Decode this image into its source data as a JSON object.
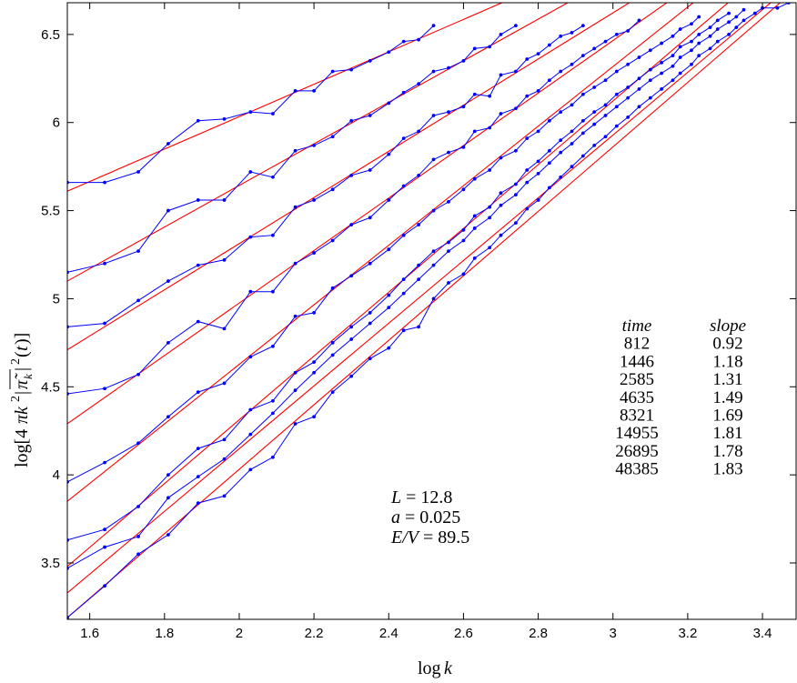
{
  "chart_data": {
    "type": "line",
    "xlabel": "log k",
    "ylabel": "log[4πk²|π̄_k|²(t)]",
    "xlim": [
      1.54,
      3.49
    ],
    "ylim": [
      3.18,
      6.68
    ],
    "xticks": [
      1.6,
      1.8,
      2.0,
      2.2,
      2.4,
      2.6,
      2.8,
      3.0,
      3.2,
      3.4
    ],
    "xtick_labels": [
      "1.6",
      "1.8",
      "2",
      "2.2",
      "2.4",
      "2.6",
      "2.8",
      "3",
      "3.2",
      "3.4"
    ],
    "yticks": [
      3.5,
      4.0,
      4.5,
      5.0,
      5.5,
      6.0,
      6.5
    ],
    "ytick_labels": [
      "3.5",
      "4",
      "4.5",
      "5",
      "5.5",
      "6",
      "6.5"
    ],
    "grid": false,
    "colors": {
      "data": "#0000ff",
      "fit": "#ff0000"
    },
    "params": [
      "L = 12.8",
      "a = 0.025",
      "E/V = 89.5"
    ],
    "table": {
      "headers": [
        "time",
        "slope"
      ],
      "rows": [
        [
          "812",
          "0.92"
        ],
        [
          "1446",
          "1.18"
        ],
        [
          "2585",
          "1.31"
        ],
        [
          "4635",
          "1.49"
        ],
        [
          "8321",
          "1.69"
        ],
        [
          "14955",
          "1.81"
        ],
        [
          "26895",
          "1.78"
        ],
        [
          "48385",
          "1.83"
        ]
      ]
    },
    "series": [
      {
        "time": "812",
        "slope": 0.92,
        "fit": {
          "x0": 1.54,
          "y0": 5.61
        },
        "points": [
          [
            1.54,
            5.66
          ],
          [
            1.64,
            5.66
          ],
          [
            1.73,
            5.72
          ],
          [
            1.81,
            5.88
          ],
          [
            1.89,
            6.01
          ],
          [
            1.96,
            6.02
          ],
          [
            2.03,
            6.06
          ],
          [
            2.09,
            6.05
          ],
          [
            2.15,
            6.18
          ],
          [
            2.2,
            6.18
          ],
          [
            2.25,
            6.29
          ],
          [
            2.3,
            6.3
          ],
          [
            2.35,
            6.35
          ],
          [
            2.4,
            6.4
          ],
          [
            2.44,
            6.46
          ],
          [
            2.48,
            6.47
          ],
          [
            2.52,
            6.55
          ]
        ]
      },
      {
        "time": "1446",
        "slope": 1.18,
        "fit": {
          "x0": 1.54,
          "y0": 5.1
        },
        "points": [
          [
            1.54,
            5.15
          ],
          [
            1.64,
            5.2
          ],
          [
            1.73,
            5.27
          ],
          [
            1.81,
            5.5
          ],
          [
            1.89,
            5.56
          ],
          [
            1.96,
            5.56
          ],
          [
            2.03,
            5.72
          ],
          [
            2.09,
            5.69
          ],
          [
            2.15,
            5.84
          ],
          [
            2.2,
            5.87
          ],
          [
            2.25,
            5.92
          ],
          [
            2.3,
            6.01
          ],
          [
            2.35,
            6.04
          ],
          [
            2.4,
            6.11
          ],
          [
            2.44,
            6.17
          ],
          [
            2.48,
            6.22
          ],
          [
            2.52,
            6.29
          ],
          [
            2.56,
            6.31
          ],
          [
            2.6,
            6.35
          ],
          [
            2.63,
            6.42
          ],
          [
            2.67,
            6.43
          ],
          [
            2.7,
            6.5
          ],
          [
            2.74,
            6.55
          ]
        ]
      },
      {
        "time": "2585",
        "slope": 1.31,
        "fit": {
          "x0": 1.54,
          "y0": 4.71
        },
        "points": [
          [
            1.54,
            4.84
          ],
          [
            1.64,
            4.86
          ],
          [
            1.73,
            4.99
          ],
          [
            1.81,
            5.1
          ],
          [
            1.89,
            5.19
          ],
          [
            1.96,
            5.22
          ],
          [
            2.03,
            5.35
          ],
          [
            2.09,
            5.36
          ],
          [
            2.15,
            5.52
          ],
          [
            2.2,
            5.56
          ],
          [
            2.25,
            5.62
          ],
          [
            2.3,
            5.7
          ],
          [
            2.35,
            5.73
          ],
          [
            2.4,
            5.82
          ],
          [
            2.44,
            5.91
          ],
          [
            2.48,
            5.95
          ],
          [
            2.52,
            6.04
          ],
          [
            2.56,
            6.06
          ],
          [
            2.6,
            6.09
          ],
          [
            2.63,
            6.16
          ],
          [
            2.67,
            6.15
          ],
          [
            2.7,
            6.27
          ],
          [
            2.74,
            6.29
          ],
          [
            2.77,
            6.36
          ],
          [
            2.8,
            6.39
          ],
          [
            2.83,
            6.44
          ],
          [
            2.86,
            6.49
          ],
          [
            2.89,
            6.51
          ],
          [
            2.92,
            6.55
          ]
        ]
      },
      {
        "time": "4635",
        "slope": 1.49,
        "fit": {
          "x0": 1.54,
          "y0": 4.29
        },
        "points": [
          [
            1.54,
            4.46
          ],
          [
            1.64,
            4.49
          ],
          [
            1.73,
            4.57
          ],
          [
            1.81,
            4.75
          ],
          [
            1.89,
            4.87
          ],
          [
            1.96,
            4.83
          ],
          [
            2.03,
            5.04
          ],
          [
            2.09,
            5.04
          ],
          [
            2.15,
            5.2
          ],
          [
            2.2,
            5.26
          ],
          [
            2.25,
            5.33
          ],
          [
            2.3,
            5.42
          ],
          [
            2.35,
            5.46
          ],
          [
            2.4,
            5.56
          ],
          [
            2.44,
            5.64
          ],
          [
            2.48,
            5.7
          ],
          [
            2.52,
            5.79
          ],
          [
            2.56,
            5.83
          ],
          [
            2.6,
            5.86
          ],
          [
            2.63,
            5.95
          ],
          [
            2.67,
            5.97
          ],
          [
            2.7,
            6.05
          ],
          [
            2.74,
            6.08
          ],
          [
            2.77,
            6.15
          ],
          [
            2.8,
            6.18
          ],
          [
            2.83,
            6.24
          ],
          [
            2.86,
            6.29
          ],
          [
            2.89,
            6.33
          ],
          [
            2.92,
            6.38
          ],
          [
            2.95,
            6.42
          ],
          [
            2.98,
            6.46
          ],
          [
            3.01,
            6.5
          ],
          [
            3.04,
            6.52
          ],
          [
            3.07,
            6.58
          ]
        ]
      },
      {
        "time": "8321",
        "slope": 1.69,
        "fit": {
          "x0": 1.54,
          "y0": 3.85
        },
        "points": [
          [
            1.54,
            3.96
          ],
          [
            1.64,
            4.07
          ],
          [
            1.73,
            4.18
          ],
          [
            1.81,
            4.33
          ],
          [
            1.89,
            4.47
          ],
          [
            1.96,
            4.52
          ],
          [
            2.03,
            4.67
          ],
          [
            2.09,
            4.73
          ],
          [
            2.15,
            4.9
          ],
          [
            2.2,
            4.92
          ],
          [
            2.25,
            5.06
          ],
          [
            2.3,
            5.13
          ],
          [
            2.35,
            5.2
          ],
          [
            2.4,
            5.28
          ],
          [
            2.44,
            5.36
          ],
          [
            2.48,
            5.42
          ],
          [
            2.52,
            5.5
          ],
          [
            2.56,
            5.55
          ],
          [
            2.6,
            5.62
          ],
          [
            2.63,
            5.68
          ],
          [
            2.67,
            5.73
          ],
          [
            2.7,
            5.8
          ],
          [
            2.74,
            5.84
          ],
          [
            2.77,
            5.91
          ],
          [
            2.8,
            5.95
          ],
          [
            2.83,
            6.01
          ],
          [
            2.86,
            6.06
          ],
          [
            2.89,
            6.1
          ],
          [
            2.92,
            6.16
          ],
          [
            2.95,
            6.2
          ],
          [
            2.98,
            6.24
          ],
          [
            3.01,
            6.29
          ],
          [
            3.04,
            6.33
          ],
          [
            3.07,
            6.37
          ],
          [
            3.1,
            6.41
          ],
          [
            3.13,
            6.45
          ],
          [
            3.16,
            6.49
          ],
          [
            3.18,
            6.53
          ],
          [
            3.21,
            6.56
          ],
          [
            3.23,
            6.6
          ]
        ]
      },
      {
        "time": "14955",
        "slope": 1.81,
        "fit": {
          "x0": 1.54,
          "y0": 3.48
        },
        "points": [
          [
            1.54,
            3.63
          ],
          [
            1.64,
            3.69
          ],
          [
            1.73,
            3.82
          ],
          [
            1.81,
            4.0
          ],
          [
            1.89,
            4.15
          ],
          [
            1.96,
            4.2
          ],
          [
            2.03,
            4.37
          ],
          [
            2.09,
            4.42
          ],
          [
            2.15,
            4.58
          ],
          [
            2.2,
            4.64
          ],
          [
            2.25,
            4.75
          ],
          [
            2.3,
            4.84
          ],
          [
            2.35,
            4.92
          ],
          [
            2.4,
            5.02
          ],
          [
            2.44,
            5.11
          ],
          [
            2.48,
            5.19
          ],
          [
            2.52,
            5.27
          ],
          [
            2.56,
            5.32
          ],
          [
            2.6,
            5.39
          ],
          [
            2.63,
            5.47
          ],
          [
            2.67,
            5.52
          ],
          [
            2.7,
            5.6
          ],
          [
            2.74,
            5.65
          ],
          [
            2.77,
            5.73
          ],
          [
            2.8,
            5.78
          ],
          [
            2.83,
            5.84
          ],
          [
            2.86,
            5.9
          ],
          [
            2.89,
            5.95
          ],
          [
            2.92,
            6.01
          ],
          [
            2.95,
            6.06
          ],
          [
            2.98,
            6.1
          ],
          [
            3.01,
            6.16
          ],
          [
            3.04,
            6.2
          ],
          [
            3.07,
            6.25
          ],
          [
            3.1,
            6.3
          ],
          [
            3.13,
            6.34
          ],
          [
            3.16,
            6.38
          ],
          [
            3.18,
            6.43
          ],
          [
            3.21,
            6.46
          ],
          [
            3.23,
            6.5
          ],
          [
            3.26,
            6.54
          ],
          [
            3.28,
            6.58
          ],
          [
            3.31,
            6.62
          ]
        ]
      },
      {
        "time": "26895",
        "slope": 1.78,
        "fit": {
          "x0": 1.54,
          "y0": 3.33
        },
        "points": [
          [
            1.54,
            3.47
          ],
          [
            1.64,
            3.59
          ],
          [
            1.73,
            3.65
          ],
          [
            1.81,
            3.87
          ],
          [
            1.89,
            3.99
          ],
          [
            1.96,
            4.09
          ],
          [
            2.03,
            4.23
          ],
          [
            2.09,
            4.35
          ],
          [
            2.15,
            4.48
          ],
          [
            2.2,
            4.58
          ],
          [
            2.25,
            4.68
          ],
          [
            2.3,
            4.77
          ],
          [
            2.35,
            4.86
          ],
          [
            2.4,
            4.95
          ],
          [
            2.44,
            5.03
          ],
          [
            2.48,
            5.11
          ],
          [
            2.52,
            5.19
          ],
          [
            2.56,
            5.27
          ],
          [
            2.6,
            5.33
          ],
          [
            2.63,
            5.4
          ],
          [
            2.67,
            5.46
          ],
          [
            2.7,
            5.53
          ],
          [
            2.74,
            5.59
          ],
          [
            2.77,
            5.66
          ],
          [
            2.8,
            5.71
          ],
          [
            2.83,
            5.77
          ],
          [
            2.86,
            5.83
          ],
          [
            2.89,
            5.88
          ],
          [
            2.92,
            5.94
          ],
          [
            2.95,
            5.99
          ],
          [
            2.98,
            6.04
          ],
          [
            3.01,
            6.09
          ],
          [
            3.04,
            6.14
          ],
          [
            3.07,
            6.19
          ],
          [
            3.1,
            6.24
          ],
          [
            3.13,
            6.28
          ],
          [
            3.16,
            6.32
          ],
          [
            3.18,
            6.37
          ],
          [
            3.21,
            6.41
          ],
          [
            3.23,
            6.45
          ],
          [
            3.26,
            6.49
          ],
          [
            3.28,
            6.53
          ],
          [
            3.31,
            6.57
          ],
          [
            3.33,
            6.6
          ],
          [
            3.35,
            6.64
          ]
        ]
      },
      {
        "time": "48385",
        "slope": 1.83,
        "fit": {
          "x0": 1.54,
          "y0": 3.19
        },
        "points": [
          [
            1.54,
            3.19
          ],
          [
            1.64,
            3.37
          ],
          [
            1.73,
            3.55
          ],
          [
            1.81,
            3.66
          ],
          [
            1.89,
            3.84
          ],
          [
            1.96,
            3.88
          ],
          [
            2.03,
            4.03
          ],
          [
            2.09,
            4.1
          ],
          [
            2.15,
            4.29
          ],
          [
            2.2,
            4.33
          ],
          [
            2.25,
            4.47
          ],
          [
            2.3,
            4.56
          ],
          [
            2.35,
            4.66
          ],
          [
            2.4,
            4.72
          ],
          [
            2.44,
            4.82
          ],
          [
            2.48,
            4.84
          ],
          [
            2.52,
            5.0
          ],
          [
            2.56,
            5.09
          ],
          [
            2.6,
            5.14
          ],
          [
            2.63,
            5.23
          ],
          [
            2.67,
            5.29
          ],
          [
            2.7,
            5.36
          ],
          [
            2.74,
            5.43
          ],
          [
            2.77,
            5.51
          ],
          [
            2.8,
            5.56
          ],
          [
            2.83,
            5.63
          ],
          [
            2.86,
            5.69
          ],
          [
            2.89,
            5.75
          ],
          [
            2.92,
            5.81
          ],
          [
            2.95,
            5.87
          ],
          [
            2.98,
            5.92
          ],
          [
            3.01,
            5.98
          ],
          [
            3.04,
            6.03
          ],
          [
            3.07,
            6.09
          ],
          [
            3.1,
            6.14
          ],
          [
            3.13,
            6.19
          ],
          [
            3.16,
            6.24
          ],
          [
            3.18,
            6.28
          ],
          [
            3.21,
            6.33
          ],
          [
            3.23,
            6.38
          ],
          [
            3.26,
            6.42
          ],
          [
            3.28,
            6.46
          ],
          [
            3.31,
            6.5
          ],
          [
            3.33,
            6.54
          ],
          [
            3.35,
            6.58
          ],
          [
            3.38,
            6.62
          ],
          [
            3.4,
            6.65
          ],
          [
            3.44,
            6.65
          ],
          [
            3.47,
            6.68
          ]
        ]
      }
    ]
  }
}
